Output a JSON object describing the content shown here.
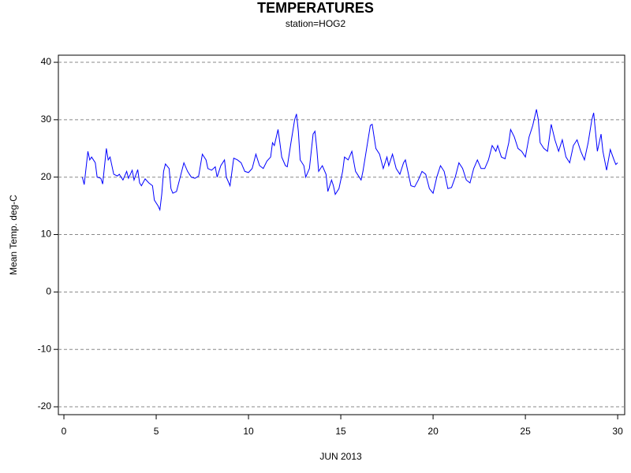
{
  "chart_data": {
    "type": "line",
    "title": "TEMPERATURES",
    "subtitle": "station=HOG2",
    "x_label": "JUN 2013",
    "y_label": "Mean Temp. deg-C",
    "xlim": [
      -0.3,
      30.38
    ],
    "xticks": [
      0,
      5,
      10,
      15,
      20,
      25,
      30
    ],
    "ylim": [
      -21.37,
      41.24
    ],
    "yticks": [
      -20,
      -10,
      0,
      10,
      20,
      30,
      40
    ],
    "grid": true,
    "series": [
      {
        "color": "#0000ff",
        "x": [
          1.0,
          1.1,
          1.3,
          1.4,
          1.5,
          1.7,
          1.8,
          2.0,
          2.1,
          2.3,
          2.4,
          2.5,
          2.7,
          2.9,
          3.0,
          3.2,
          3.4,
          3.5,
          3.7,
          3.8,
          4.0,
          4.1,
          4.2,
          4.4,
          4.6,
          4.8,
          4.9,
          5.1,
          5.2,
          5.3,
          5.4,
          5.5,
          5.7,
          5.8,
          5.9,
          6.1,
          6.3,
          6.5,
          6.7,
          6.9,
          7.1,
          7.3,
          7.5,
          7.7,
          7.8,
          8.0,
          8.2,
          8.3,
          8.5,
          8.7,
          8.8,
          9.0,
          9.2,
          9.4,
          9.6,
          9.8,
          10.0,
          10.2,
          10.4,
          10.6,
          10.8,
          11.0,
          11.2,
          11.3,
          11.4,
          11.6,
          11.7,
          11.8,
          12.0,
          12.1,
          12.3,
          12.5,
          12.6,
          12.7,
          12.8,
          13.0,
          13.1,
          13.3,
          13.5,
          13.6,
          13.7,
          13.8,
          14.0,
          14.2,
          14.3,
          14.5,
          14.6,
          14.7,
          14.9,
          15.1,
          15.2,
          15.4,
          15.6,
          15.8,
          16.0,
          16.1,
          16.2,
          16.4,
          16.6,
          16.7,
          16.9,
          17.1,
          17.3,
          17.5,
          17.6,
          17.8,
          18.0,
          18.2,
          18.4,
          18.5,
          18.6,
          18.8,
          19.0,
          19.2,
          19.4,
          19.6,
          19.8,
          20.0,
          20.2,
          20.4,
          20.6,
          20.8,
          21.0,
          21.2,
          21.4,
          21.6,
          21.8,
          22.0,
          22.2,
          22.4,
          22.6,
          22.8,
          23.0,
          23.2,
          23.4,
          23.5,
          23.7,
          23.9,
          24.1,
          24.2,
          24.4,
          24.6,
          24.8,
          25.0,
          25.2,
          25.4,
          25.6,
          25.7,
          25.8,
          26.0,
          26.2,
          26.4,
          26.6,
          26.8,
          27.0,
          27.2,
          27.4,
          27.6,
          27.8,
          28.0,
          28.2,
          28.4,
          28.6,
          28.7,
          28.9,
          29.1,
          29.2,
          29.4,
          29.6,
          29.8,
          29.9,
          30.0
        ],
        "values": [
          20,
          18.7,
          24.5,
          23,
          23.5,
          22.5,
          20,
          19.8,
          18.8,
          25,
          23,
          23.5,
          20.5,
          20.2,
          20.5,
          19.5,
          21,
          19.8,
          21.2,
          19.5,
          21.3,
          19,
          18.5,
          19.7,
          19,
          18.5,
          16,
          15,
          14.3,
          17,
          21,
          22.3,
          21.5,
          18,
          17.2,
          17.5,
          20,
          22.5,
          21,
          20,
          19.8,
          20.2,
          24,
          23,
          21.5,
          21.2,
          21.8,
          20,
          22,
          23,
          20,
          18.5,
          23.3,
          23,
          22.5,
          21,
          20.8,
          21.5,
          24,
          22,
          21.5,
          22.8,
          23.5,
          26,
          25.5,
          28.3,
          26,
          23.5,
          22,
          21.8,
          26,
          30,
          31,
          28,
          23,
          22,
          20,
          21.5,
          27.5,
          28,
          25,
          21,
          22,
          20.5,
          17.5,
          19.5,
          18.5,
          17,
          18,
          21,
          23.5,
          23,
          24.5,
          21,
          20,
          19.5,
          21,
          25,
          29,
          29.2,
          25,
          24,
          21.5,
          23.5,
          22,
          24,
          21.5,
          20.5,
          22.5,
          23,
          21.5,
          18.5,
          18.3,
          19.5,
          21,
          20.5,
          18,
          17.2,
          20,
          22,
          21,
          18,
          18.2,
          20,
          22.5,
          21.5,
          19.5,
          19,
          21.5,
          23,
          21.5,
          21.5,
          23,
          25.5,
          24.5,
          25.5,
          23.5,
          23.2,
          26,
          28.3,
          27,
          25,
          24.5,
          23.5,
          27,
          29,
          31.8,
          30,
          26,
          25,
          24.5,
          29.2,
          26.5,
          24.5,
          26.5,
          23.5,
          22.5,
          25.5,
          26.5,
          24.5,
          23,
          26,
          30,
          31.2,
          24.5,
          27.5,
          24.5,
          21.2,
          24.8,
          23,
          22.2,
          22.5
        ]
      }
    ]
  }
}
